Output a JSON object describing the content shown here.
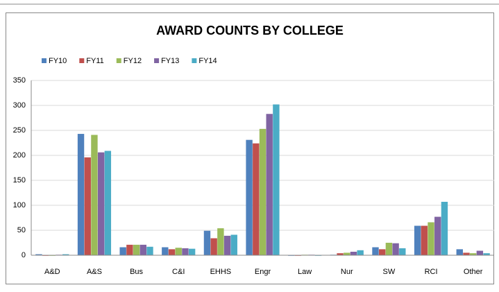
{
  "chart_data": {
    "type": "bar",
    "title": "AWARD COUNTS BY COLLEGE",
    "categories": [
      "A&D",
      "A&S",
      "Bus",
      "C&I",
      "EHHS",
      "Engr",
      "Law",
      "Nur",
      "SW",
      "RCI",
      "Other"
    ],
    "series": [
      {
        "name": "FY10",
        "color": "#4f81bd",
        "values": [
          2,
          243,
          16,
          16,
          49,
          231,
          0,
          1,
          16,
          59,
          12
        ]
      },
      {
        "name": "FY11",
        "color": "#c0504d",
        "values": [
          0,
          196,
          21,
          12,
          34,
          224,
          0,
          4,
          12,
          59,
          5
        ]
      },
      {
        "name": "FY12",
        "color": "#9bbb59",
        "values": [
          0,
          241,
          21,
          15,
          54,
          253,
          1,
          5,
          25,
          66,
          4
        ]
      },
      {
        "name": "FY13",
        "color": "#8064a2",
        "values": [
          1,
          206,
          21,
          14,
          39,
          283,
          1,
          7,
          24,
          77,
          9
        ]
      },
      {
        "name": "FY14",
        "color": "#4bacc6",
        "values": [
          2,
          209,
          17,
          13,
          41,
          302,
          0,
          10,
          14,
          107,
          4
        ]
      }
    ],
    "ylim": [
      0,
      350
    ],
    "yticks": [
      0,
      50,
      100,
      150,
      200,
      250,
      300,
      350
    ],
    "grid": true,
    "legend": "top-left"
  }
}
